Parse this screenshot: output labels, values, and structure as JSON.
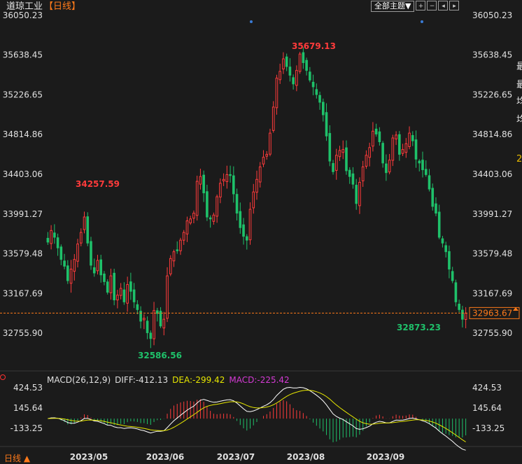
{
  "header": {
    "instrument": "道琼工业",
    "period_tag": "【日线】",
    "theme_button": "全部主题▼",
    "tool_icons": [
      "zoom-in-icon",
      "zoom-out-icon",
      "left-arrow-icon",
      "right-arrow-icon"
    ]
  },
  "main_axis": {
    "ticks": [
      "36050.23",
      "35638.45",
      "35226.65",
      "34814.86",
      "34403.06",
      "33991.27",
      "33579.48",
      "33167.69",
      "32755.90"
    ],
    "last_price": "32963.67"
  },
  "annotations": {
    "high_left": "34257.59",
    "high_top": "35679.13",
    "low_left": "32586.56",
    "low_right": "32873.23"
  },
  "macd_legend": {
    "name": "MACD(26,12,9)",
    "diff": "DIFF:-412.13",
    "dea": "DEA:-299.42",
    "macd": "MACD:-225.42"
  },
  "macd_axis": {
    "ticks": [
      "424.53",
      "145.64",
      "-133.25"
    ]
  },
  "x_axis": {
    "labels": [
      "2023/05",
      "2023/06",
      "2023/07",
      "2023/08",
      "2023/09"
    ]
  },
  "footer": {
    "period_switch": "日线 ▲"
  },
  "right_cutoff": [
    "最",
    "最",
    "均",
    "均",
    "2"
  ],
  "colors": {
    "up": "#ff3b3b",
    "down": "#1fc16a",
    "diff": "#ffffff",
    "dea": "#e6e600",
    "macd": "#d43ad4",
    "accent": "#ff7a1a"
  },
  "chart_data": {
    "type": "candlestick",
    "title": "道琼工业 【日线】",
    "y_ticks": [
      36050.23,
      35638.45,
      35226.65,
      34814.86,
      34403.06,
      33991.27,
      33579.48,
      33167.69,
      32755.9
    ],
    "ylim": [
      32690,
      36120
    ],
    "last_price": 32963.67,
    "high": 35679.13,
    "low": 32586.56,
    "local_high": 34257.59,
    "local_low": 32873.23,
    "x_labels": [
      "2023/05",
      "2023/06",
      "2023/07",
      "2023/08",
      "2023/09"
    ],
    "closes_approx": [
      33700,
      33820,
      33750,
      33640,
      33520,
      33450,
      33300,
      33420,
      33520,
      33680,
      33800,
      33960,
      33690,
      33460,
      33380,
      33510,
      33360,
      33290,
      33180,
      33350,
      33100,
      33150,
      33220,
      33080,
      33260,
      33190,
      33080,
      33000,
      32880,
      32910,
      32760,
      32700,
      32990,
      32960,
      32830,
      32900,
      33350,
      33530,
      33600,
      33610,
      33720,
      33800,
      33920,
      33940,
      34000,
      34330,
      34380,
      34210,
      33960,
      33940,
      33980,
      34170,
      34310,
      34350,
      34400,
      34390,
      34200,
      34000,
      33850,
      33760,
      33720,
      34040,
      34220,
      34350,
      34480,
      34580,
      34610,
      34830,
      35100,
      35400,
      35470,
      35600,
      35520,
      35430,
      35340,
      35480,
      35650,
      35560,
      35480,
      35380,
      35310,
      35230,
      35150,
      35020,
      34800,
      34540,
      34430,
      34600,
      34650,
      34660,
      34440,
      34380,
      34300,
      34100,
      34320,
      34480,
      34600,
      34680,
      34850,
      34820,
      34740,
      34520,
      34420,
      34550,
      34780,
      34810,
      34610,
      34660,
      34720,
      34830,
      34750,
      34560,
      34520,
      34450,
      34400,
      34250,
      34070,
      34000,
      33750,
      33690,
      33600,
      33420,
      33300,
      33080,
      33000,
      32900,
      32963.67
    ],
    "macd": {
      "legend": [
        "MACD(26,12,9)",
        "DIFF:-412.13",
        "DEA:-299.42",
        "MACD:-225.42"
      ],
      "y_ticks": [
        424.53,
        145.64,
        -133.25
      ],
      "final": {
        "DIFF": -412.13,
        "DEA": -299.42,
        "MACD": -225.42
      }
    }
  }
}
